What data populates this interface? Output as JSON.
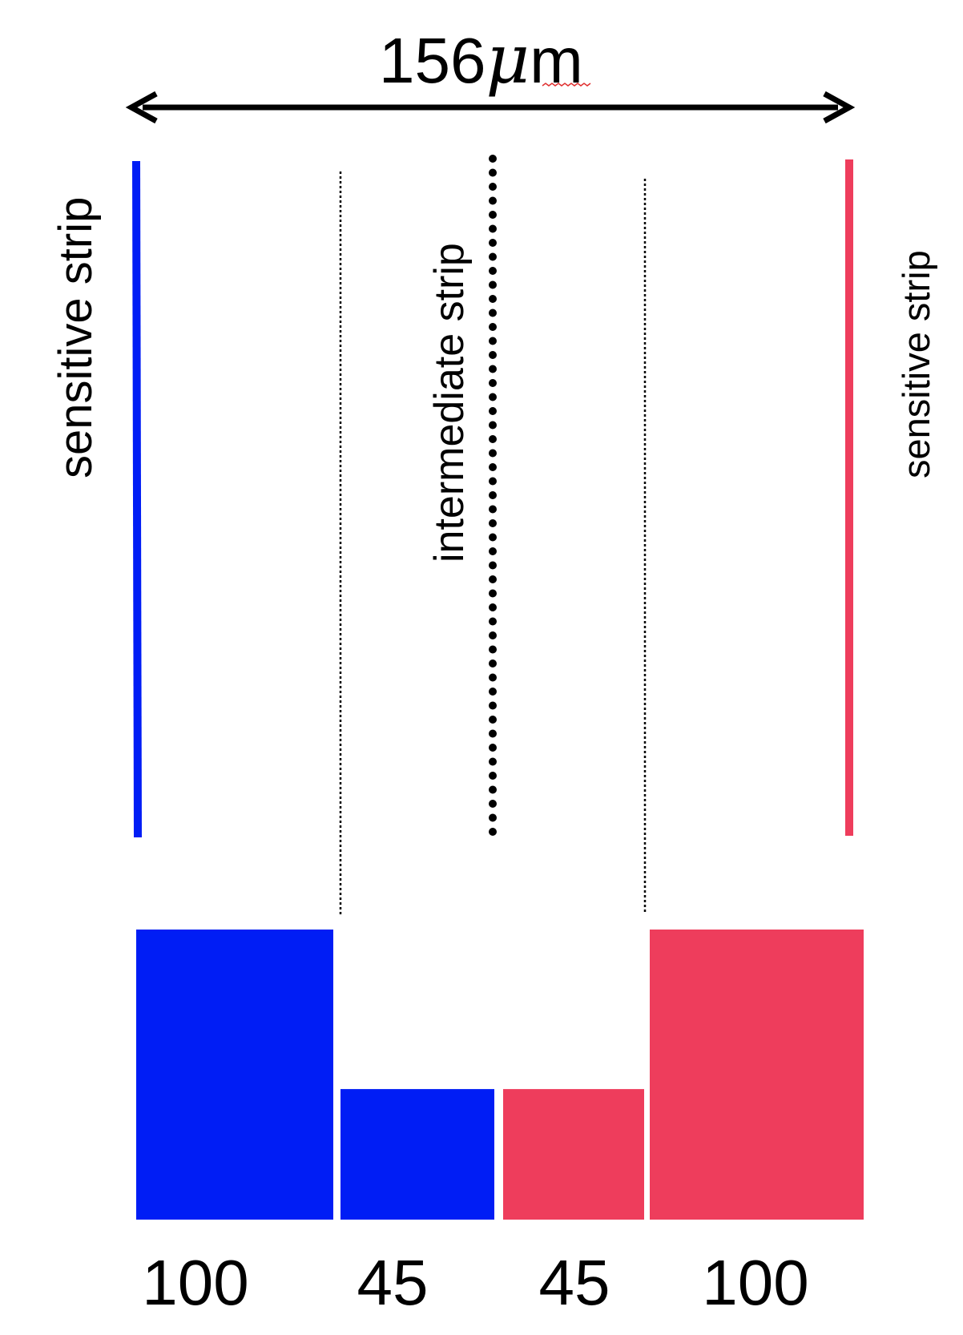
{
  "pitch": {
    "number": "156",
    "unit_symbol": "μ",
    "unit_rest": "m"
  },
  "labels": {
    "left_strip": "sensitive strip",
    "middle_strip": "intermediate strip",
    "right_strip": "sensitive strip"
  },
  "colors": {
    "left": "#001df5",
    "right": "#ee3d5c",
    "line": "#000000"
  },
  "chart_data": {
    "type": "bar",
    "categories": [
      "",
      "",
      "",
      ""
    ],
    "values": [
      100,
      45,
      45,
      100
    ],
    "value_labels": [
      "100",
      "45",
      "45",
      "100"
    ],
    "ylim": [
      0,
      100
    ],
    "series_colors": [
      "#001df5",
      "#001df5",
      "#ee3d5c",
      "#ee3d5c"
    ]
  }
}
